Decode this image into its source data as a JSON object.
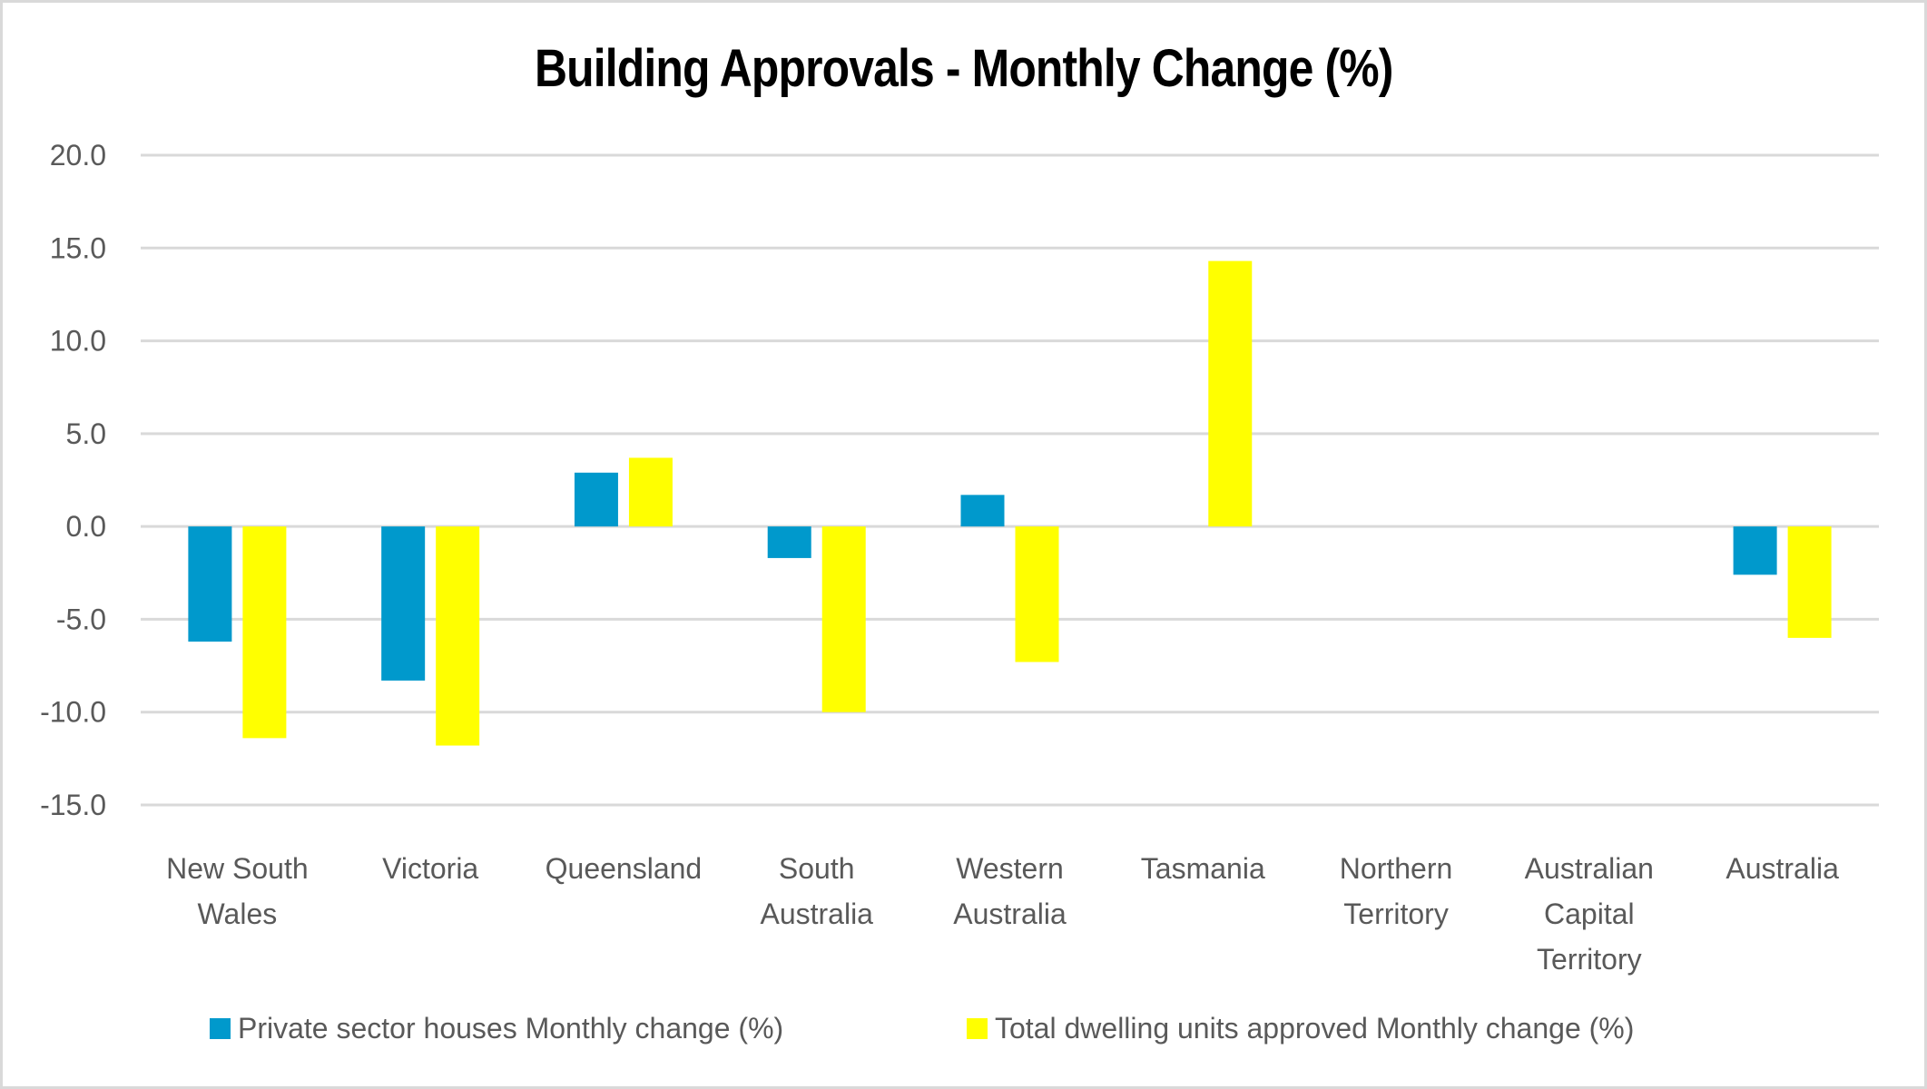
{
  "chart_data": {
    "type": "bar",
    "title": "Building Approvals - Monthly Change (%)",
    "xlabel": "",
    "ylabel": "",
    "ylim": [
      -15,
      20
    ],
    "yticks": [
      20,
      15,
      10,
      5,
      0,
      -5,
      -10,
      -15
    ],
    "ytick_labels": [
      "20.0",
      "15.0",
      "10.0",
      "5.0",
      "0.0",
      "-5.0",
      "-10.0",
      "-15.0"
    ],
    "grid": true,
    "legend_position": "bottom",
    "categories": [
      [
        "New South",
        "Wales"
      ],
      [
        "Victoria"
      ],
      [
        "Queensland"
      ],
      [
        "South",
        "Australia"
      ],
      [
        "Western",
        "Australia"
      ],
      [
        "Tasmania"
      ],
      [
        "Northern",
        "Territory"
      ],
      [
        "Australian",
        "Capital",
        "Territory"
      ],
      [
        "Australia"
      ]
    ],
    "series": [
      {
        "name": "Private sector houses Monthly change (%)",
        "color": "#0099CC",
        "values": [
          -6.2,
          -8.3,
          2.9,
          -1.7,
          1.7,
          0,
          0,
          0,
          -2.6
        ]
      },
      {
        "name": "Total dwelling units approved Monthly change (%)",
        "color": "#FFFF00",
        "values": [
          -11.4,
          -11.8,
          3.7,
          -10.0,
          -7.3,
          14.3,
          0,
          0,
          -6.0
        ]
      }
    ]
  }
}
